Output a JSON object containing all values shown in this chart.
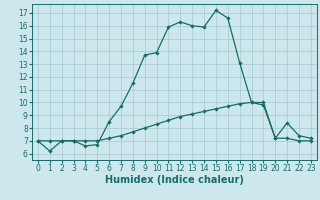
{
  "title": "",
  "xlabel": "Humidex (Indice chaleur)",
  "ylabel": "",
  "background_color": "#cce8ec",
  "grid_color": "#aacdd4",
  "line_color": "#1a6b6b",
  "xlim": [
    -0.5,
    23.5
  ],
  "ylim": [
    5.5,
    17.7
  ],
  "yticks": [
    6,
    7,
    8,
    9,
    10,
    11,
    12,
    13,
    14,
    15,
    16,
    17
  ],
  "xticks": [
    0,
    1,
    2,
    3,
    4,
    5,
    6,
    7,
    8,
    9,
    10,
    11,
    12,
    13,
    14,
    15,
    16,
    17,
    18,
    19,
    20,
    21,
    22,
    23
  ],
  "curve1_x": [
    0,
    1,
    2,
    3,
    4,
    5,
    6,
    7,
    8,
    9,
    10,
    11,
    12,
    13,
    14,
    15,
    16,
    17,
    18,
    19,
    20,
    21,
    22,
    23
  ],
  "curve1_y": [
    7.0,
    6.2,
    7.0,
    7.0,
    6.6,
    6.7,
    8.5,
    9.7,
    11.5,
    13.7,
    13.9,
    15.9,
    16.3,
    16.0,
    15.9,
    17.2,
    16.6,
    13.1,
    10.0,
    9.8,
    7.2,
    8.4,
    7.4,
    7.2
  ],
  "curve2_x": [
    0,
    1,
    2,
    3,
    4,
    5,
    6,
    7,
    8,
    9,
    10,
    11,
    12,
    13,
    14,
    15,
    16,
    17,
    18,
    19,
    20,
    21,
    22,
    23
  ],
  "curve2_y": [
    7.0,
    7.0,
    7.0,
    7.0,
    7.0,
    7.0,
    7.2,
    7.4,
    7.7,
    8.0,
    8.3,
    8.6,
    8.9,
    9.1,
    9.3,
    9.5,
    9.7,
    9.9,
    10.0,
    10.0,
    7.2,
    7.2,
    7.0,
    7.0
  ],
  "tick_fontsize": 5.5,
  "xlabel_fontsize": 7.0,
  "marker_size": 2.2,
  "linewidth": 0.9
}
